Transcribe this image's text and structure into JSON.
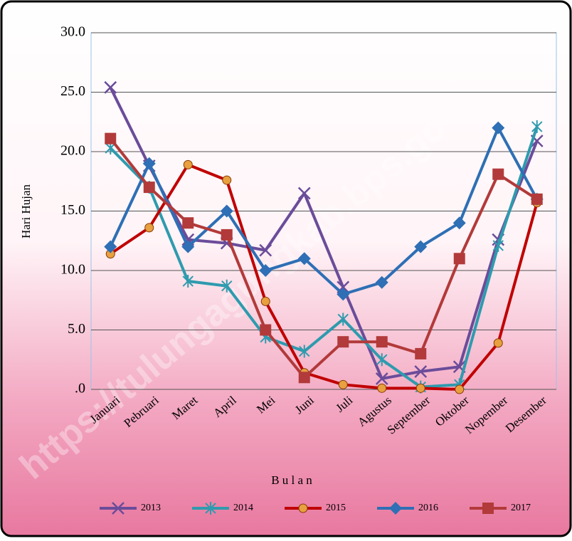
{
  "chart_data": {
    "type": "line",
    "categories": [
      "Januari",
      "Pebruari",
      "Maret",
      "April",
      "Mei",
      "Juni",
      "Juli",
      "Agustus",
      "September",
      "Oktober",
      "Nopember",
      "Desember"
    ],
    "series": [
      {
        "name": "2013",
        "color": "#6b4c9a",
        "marker": "x",
        "values": [
          25.4,
          18.8,
          12.6,
          12.3,
          11.7,
          16.5,
          8.6,
          0.9,
          1.5,
          1.9,
          12.6,
          20.9
        ]
      },
      {
        "name": "2014",
        "color": "#2e9bae",
        "marker": "star",
        "values": [
          20.3,
          17.0,
          9.1,
          8.7,
          4.4,
          3.2,
          5.9,
          2.5,
          0.2,
          0.4,
          12.1,
          22.1
        ]
      },
      {
        "name": "2015",
        "color": "#c00000",
        "marker": "circle",
        "values": [
          11.4,
          13.6,
          18.9,
          17.6,
          7.4,
          1.4,
          0.4,
          0.1,
          0.1,
          0.0,
          3.9,
          15.7
        ]
      },
      {
        "name": "2016",
        "color": "#2e6fb5",
        "marker": "diamond",
        "values": [
          12,
          19,
          12,
          15,
          10,
          11,
          8,
          9,
          12,
          14,
          22,
          16
        ]
      },
      {
        "name": "2017",
        "color": "#b23a3a",
        "marker": "square",
        "values": [
          21.1,
          17,
          14,
          13,
          5,
          1,
          4,
          4,
          3,
          11,
          18.1,
          16
        ]
      }
    ],
    "ylabel": "Hari Hujan",
    "xlabel": "B u l a n",
    "ylim": [
      0,
      30
    ],
    "yticks": [
      {
        "value": 0,
        "label": ".0"
      },
      {
        "value": 5,
        "label": "5.0"
      },
      {
        "value": 10,
        "label": "10.0"
      },
      {
        "value": 15,
        "label": "15.0"
      },
      {
        "value": 20,
        "label": "20.0"
      },
      {
        "value": 25,
        "label": "25.0"
      },
      {
        "value": 30,
        "label": "30.0"
      }
    ],
    "grid": true,
    "legend": "bottom",
    "watermark": "https://tulungagungkab.bps.go"
  }
}
